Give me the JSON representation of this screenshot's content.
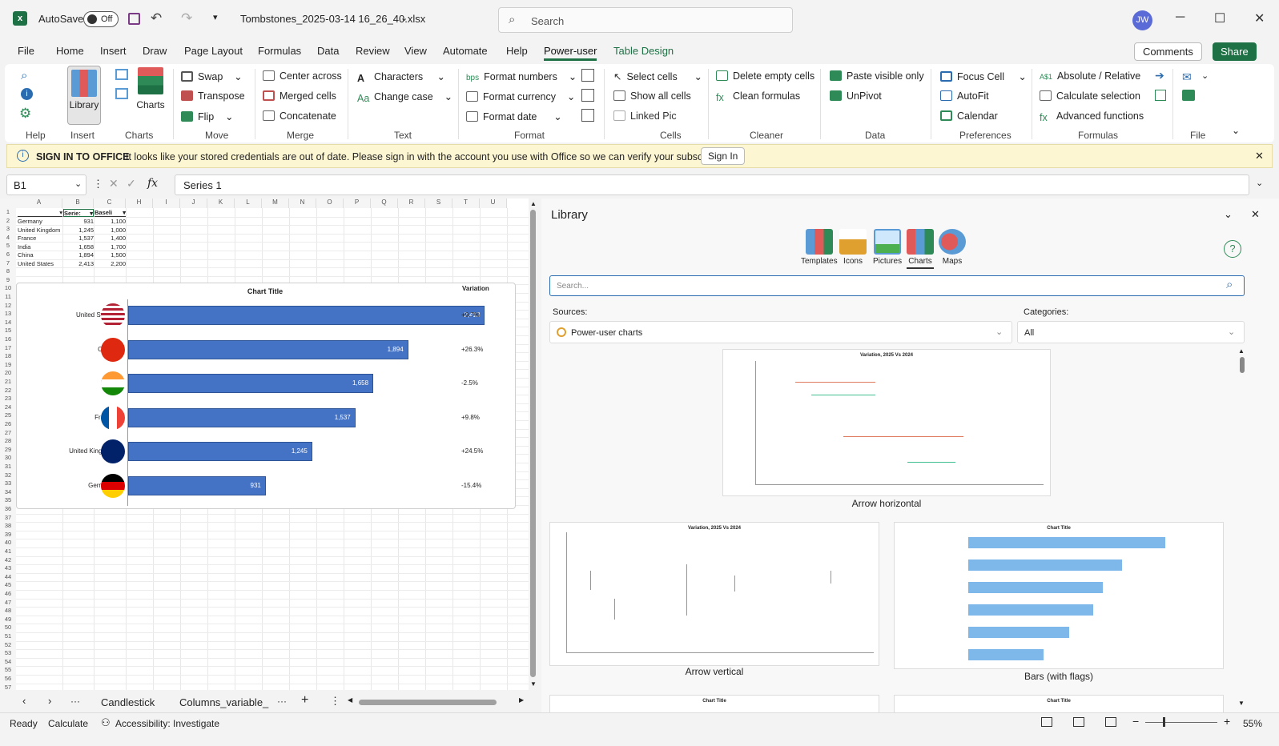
{
  "titlebar": {
    "autosave": "AutoSave",
    "toggle": "Off",
    "filename": "Tombstones_2025-03-14 16_26_40.xlsx",
    "search_placeholder": "Search",
    "avatar": "JW"
  },
  "menu": {
    "tabs": [
      "File",
      "Home",
      "Insert",
      "Draw",
      "Page Layout",
      "Formulas",
      "Data",
      "Review",
      "View",
      "Automate",
      "Help",
      "Power-user",
      "Table Design"
    ],
    "comments": "Comments",
    "share": "Share"
  },
  "ribbon": {
    "help_label": "Help",
    "library": "Library",
    "insert_label": "Insert",
    "charts": "Charts",
    "charts_label": "Charts",
    "swap": "Swap",
    "transpose": "Transpose",
    "flip": "Flip",
    "move_label": "Move",
    "center_across": "Center across",
    "merged_cells": "Merged cells",
    "concatenate": "Concatenate",
    "merge_label": "Merge",
    "characters": "Characters",
    "change_case": "Change case",
    "text_label": "Text",
    "format_numbers": "Format numbers",
    "format_currency": "Format currency",
    "format_date": "Format date",
    "format_label": "Format",
    "select_cells": "Select cells",
    "show_all_cells": "Show all cells",
    "linked_pic": "Linked Pic",
    "cells_label": "Cells",
    "delete_empty": "Delete empty cells",
    "clean_formulas": "Clean formulas",
    "cleaner_label": "Cleaner",
    "paste_visible": "Paste visible only",
    "unpivot": "UnPivot",
    "data_label": "Data",
    "focus_cell": "Focus Cell",
    "autofit": "AutoFit",
    "calendar": "Calendar",
    "pref_label": "Preferences",
    "absolute_relative": "Absolute / Relative",
    "calc_selection": "Calculate selection",
    "advanced_functions": "Advanced functions",
    "formulas_label": "Formulas",
    "file_label": "File",
    "bps": "bps",
    "abs_icon": "A$1"
  },
  "infobar": {
    "title": "SIGN IN TO OFFICE",
    "message": "It looks like your stored credentials are out of date. Please sign in with the account you use with Office so we can verify your subscription.",
    "button": "Sign In"
  },
  "formula": {
    "namebox": "B1",
    "content": "Series 1",
    "fx": "fx"
  },
  "sheet": {
    "columns": [
      "A",
      "B",
      "C",
      "H",
      "I",
      "J",
      "K",
      "L",
      "M",
      "N",
      "O",
      "P",
      "Q",
      "R",
      "S",
      "T",
      "U"
    ],
    "headers": [
      "",
      "Serie:",
      "Baseli"
    ],
    "rows": [
      [
        "Germany",
        "931",
        "1,100"
      ],
      [
        "United Kingdom",
        "1,245",
        "1,000"
      ],
      [
        "France",
        "1,537",
        "1,400"
      ],
      [
        "India",
        "1,658",
        "1,700"
      ],
      [
        "China",
        "1,894",
        "1,500"
      ],
      [
        "United States",
        "2,413",
        "2,200"
      ]
    ],
    "chart": {
      "title": "Chart Title",
      "variation_header": "Variation"
    }
  },
  "chart_data": {
    "type": "bar",
    "title": "Chart Title",
    "categories": [
      "United States",
      "China",
      "India",
      "France",
      "United Kingdom",
      "Germany"
    ],
    "values": [
      2413,
      1894,
      1658,
      1537,
      1245,
      931
    ],
    "labels": [
      "2,413",
      "1,894",
      "1,658",
      "1,537",
      "1,245",
      "931"
    ],
    "variation": [
      "+9.7%",
      "+26.3%",
      "-2.5%",
      "+9.8%",
      "+24.5%",
      "-15.4%"
    ]
  },
  "sheettabs": {
    "tabs": [
      "Candlestick",
      "Columns_variable_"
    ],
    "more": "···"
  },
  "library": {
    "title": "Library",
    "icons": [
      "Templates",
      "Icons",
      "Pictures",
      "Charts",
      "Maps"
    ],
    "search_placeholder": "Search...",
    "sources_label": "Sources:",
    "sources_value": "Power-user charts",
    "categories_label": "Categories:",
    "categories_value": "All",
    "thumbs": [
      {
        "caption": "Arrow horizontal",
        "title": "Variation, 2025 Vs 2024"
      },
      {
        "caption": "Arrow vertical",
        "title": "Variation, 2025 Vs 2024"
      },
      {
        "caption": "Bars (with flags)",
        "title": "Chart Title"
      }
    ]
  },
  "status": {
    "ready": "Ready",
    "calculate": "Calculate",
    "accessibility": "Accessibility: Investigate",
    "zoom": "55%"
  }
}
